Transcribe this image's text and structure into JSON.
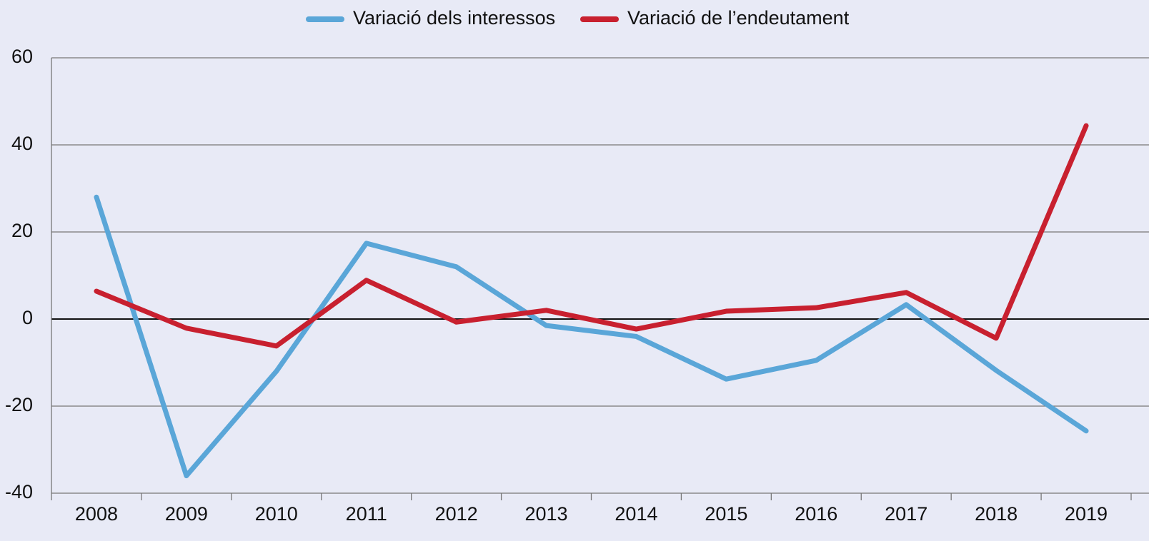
{
  "chart_data": {
    "type": "line",
    "categories": [
      "2008",
      "2009",
      "2010",
      "2011",
      "2012",
      "2013",
      "2014",
      "2015",
      "2016",
      "2017",
      "2018",
      "2019"
    ],
    "series": [
      {
        "name": "Variació dels interessos",
        "color": "#5aa6d8",
        "values": [
          28,
          -36,
          -12,
          17.4,
          12,
          -1.5,
          -4,
          -13.8,
          -9.5,
          3.3,
          -11.8,
          -25.7
        ]
      },
      {
        "name": "Variació de l’endeutament",
        "color": "#c8202f",
        "values": [
          6.4,
          -2.1,
          -6.2,
          8.9,
          -0.7,
          2,
          -2.3,
          1.8,
          2.6,
          6.1,
          -4.4,
          44.4
        ]
      }
    ],
    "ylim": [
      -40,
      60
    ],
    "yticks": [
      -40,
      -20,
      0,
      20,
      40,
      60
    ],
    "grid": true,
    "legend": "top"
  }
}
